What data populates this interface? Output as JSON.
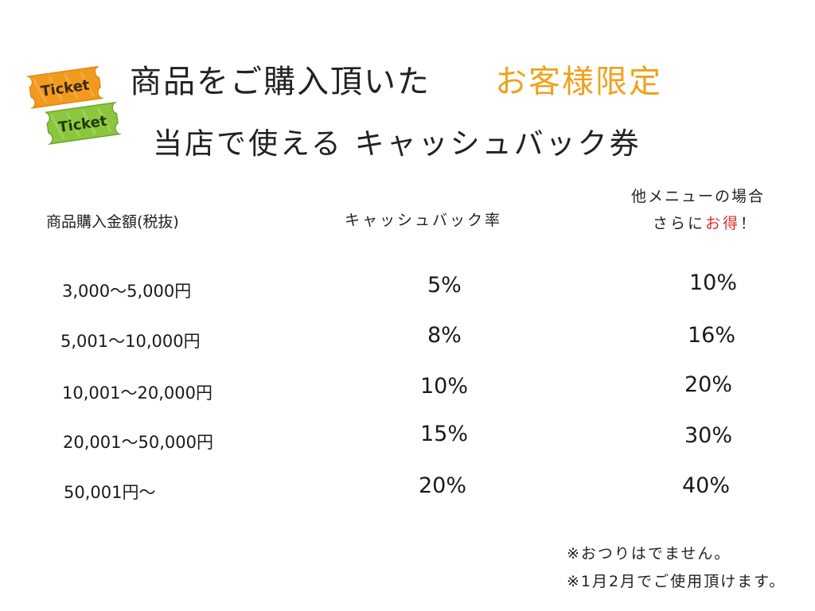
{
  "title": {
    "line1": "商品をご購入頂いた",
    "highlight": "お客様限定",
    "line2": "当店で使える キャッシュバック券"
  },
  "logo": {
    "ticket_top": "Ticket",
    "ticket_bottom": "Ticket",
    "colors": {
      "top": "#f29a1e",
      "bottom": "#8cc63e"
    }
  },
  "table": {
    "headers": {
      "amount": "商品購入金額(税抜)",
      "rate": "キャッシュバック率",
      "other_line1": "他メニューの場合",
      "other_line2_prefix": "さらに",
      "other_line2_red": "お得",
      "other_line2_suffix": "！"
    },
    "rows": [
      {
        "amount": "3,000〜5,000円",
        "rate": "5%",
        "other": "10%"
      },
      {
        "amount": "5,001〜10,000円",
        "rate": "8%",
        "other": "16%"
      },
      {
        "amount": "10,001〜20,000円",
        "rate": "10%",
        "other": "20%"
      },
      {
        "amount": "20,001〜50,000円",
        "rate": "15%",
        "other": "30%"
      },
      {
        "amount": "50,001円〜",
        "rate": "20%",
        "other": "40%"
      }
    ]
  },
  "notes": [
    "※おつりはでません。",
    "※1月2月でご使用頂けます。"
  ],
  "colors": {
    "highlight": "#f0a11c",
    "accent_red": "#d8302a",
    "text": "#1a1a1a"
  }
}
